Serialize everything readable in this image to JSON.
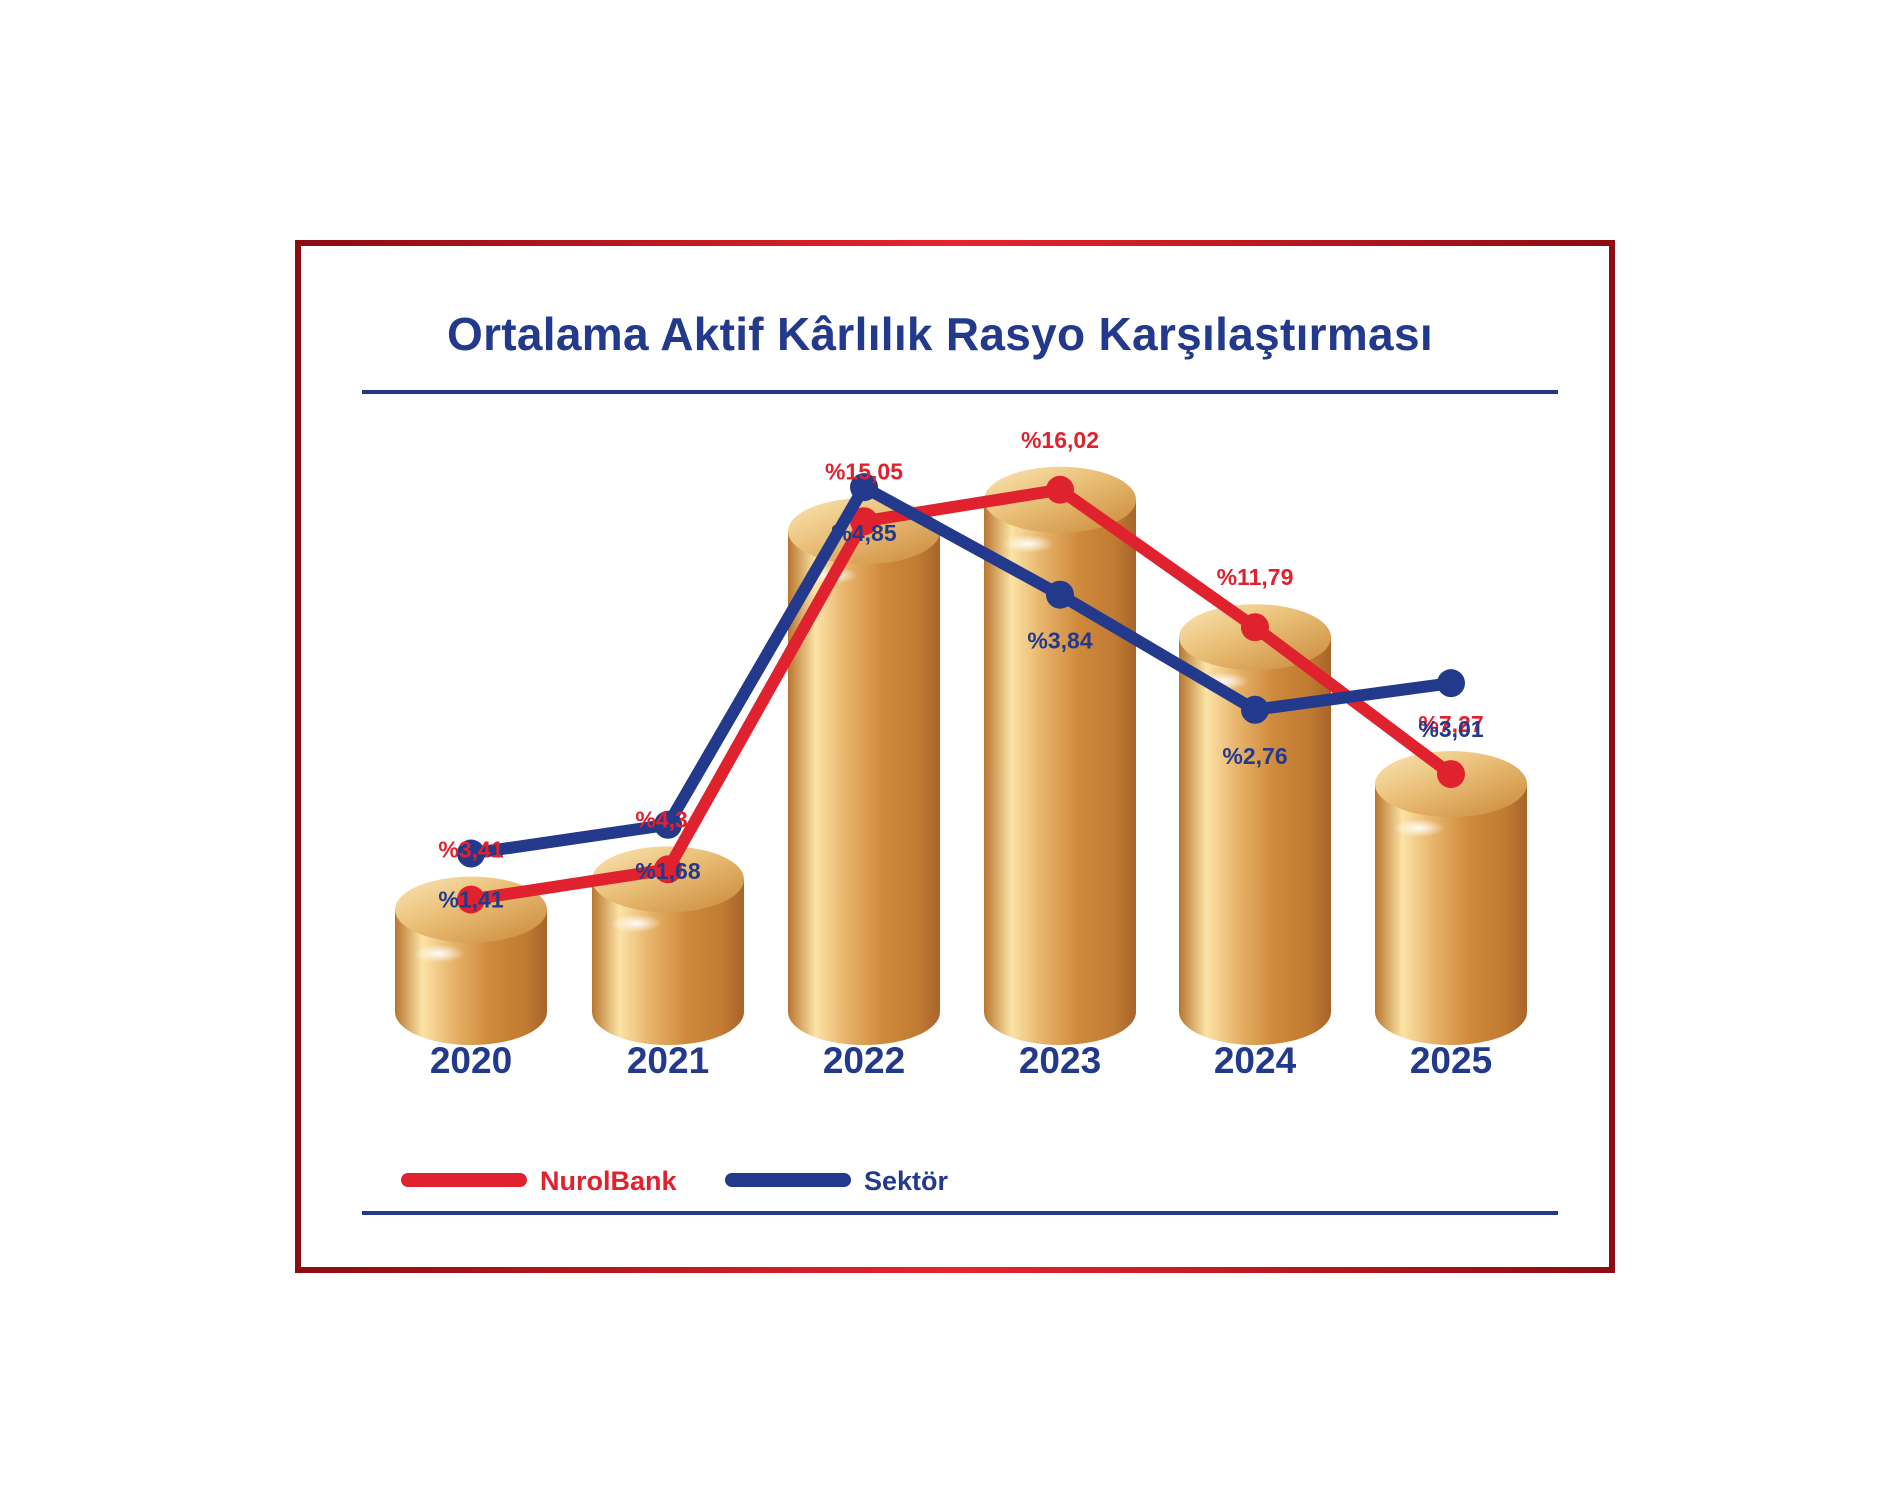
{
  "title": "Ortalama Aktif Kârlılık Rasyo Karşılaştırması",
  "colors": {
    "frame": "#b0121b",
    "accent_red": "#e0212e",
    "accent_blue": "#233a8c",
    "gold_light": "#f8d99a",
    "gold_mid": "#d99a4a",
    "gold_dark": "#b8722e"
  },
  "chart_data": {
    "type": "bar",
    "categories": [
      "2020",
      "2021",
      "2022",
      "2023",
      "2024",
      "2025"
    ],
    "series": [
      {
        "name": "NurolBank",
        "values": [
          3.41,
          4.34,
          15.05,
          16.02,
          11.79,
          7.27
        ],
        "labels": [
          "%3,41",
          "%4,34",
          "%15,05",
          "%16,02",
          "%11,79",
          "%7,27"
        ],
        "render": "bar+line",
        "color": "#e0212e"
      },
      {
        "name": "Sektör",
        "values": [
          1.41,
          1.68,
          4.85,
          3.84,
          2.76,
          3.01
        ],
        "labels": [
          "%1,41",
          "%1,68",
          "%4,85",
          "%3,84",
          "%2,76",
          "%3,01"
        ],
        "render": "line",
        "color": "#233a8c"
      }
    ],
    "legend": [
      "NurolBank",
      "Sektör"
    ],
    "legend_position": "bottom-left",
    "grid": false
  }
}
